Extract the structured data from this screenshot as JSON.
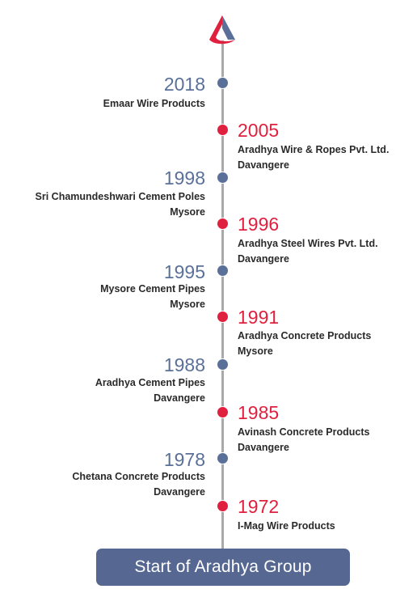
{
  "logo": {
    "icon": "aradhya-logo-icon",
    "colors": [
      "#e0203f",
      "#5a7099"
    ]
  },
  "colors": {
    "blue": "#5a7099",
    "red": "#e0203f",
    "line": "#a9a9a9",
    "button": "#566891"
  },
  "milestones": [
    {
      "year": "2018",
      "lines": [
        "Emaar Wire Products"
      ]
    },
    {
      "year": "2005",
      "lines": [
        "Aradhya Wire & Ropes Pvt. Ltd.",
        "Davangere"
      ]
    },
    {
      "year": "1998",
      "lines": [
        "Sri Chamundeshwari Cement Poles",
        "Mysore"
      ]
    },
    {
      "year": "1996",
      "lines": [
        "Aradhya Steel Wires Pvt. Ltd.",
        "Davangere"
      ]
    },
    {
      "year": "1995",
      "lines": [
        "Mysore Cement Pipes",
        "Mysore"
      ]
    },
    {
      "year": "1991",
      "lines": [
        "Aradhya Concrete Products",
        "Mysore"
      ]
    },
    {
      "year": "1988",
      "lines": [
        "Aradhya Cement Pipes",
        "Davangere"
      ]
    },
    {
      "year": "1985",
      "lines": [
        "Avinash Concrete Products",
        "Davangere"
      ]
    },
    {
      "year": "1978",
      "lines": [
        "Chetana Concrete Products",
        "Davangere"
      ]
    },
    {
      "year": "1972",
      "lines": [
        "I-Mag Wire Products"
      ]
    }
  ],
  "start_label": "Start of Aradhya Group"
}
